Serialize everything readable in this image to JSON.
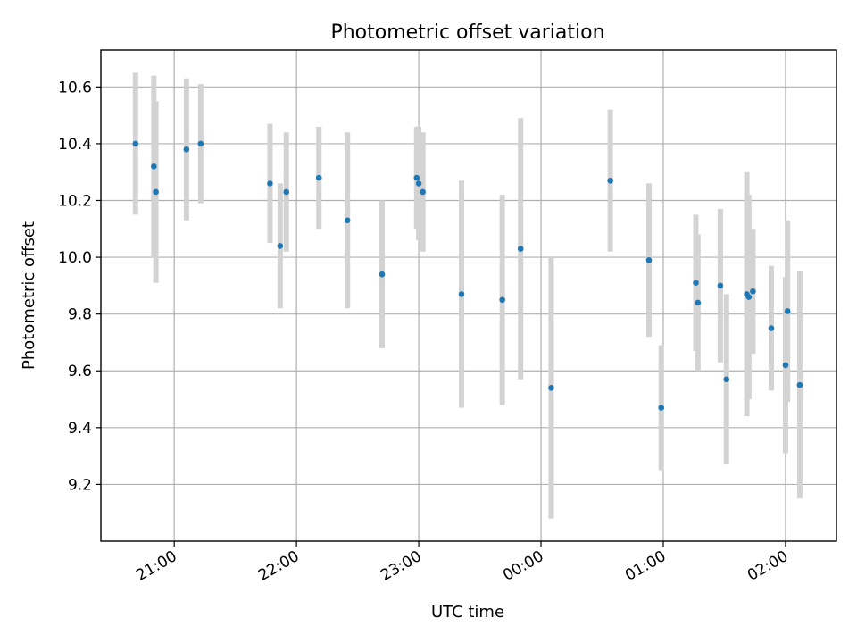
{
  "chart_data": {
    "type": "scatter",
    "title": "Photometric offset variation",
    "xlabel": "UTC time",
    "ylabel": "Photometric offset",
    "x_unit": "UTC",
    "xlim": [
      "20:24",
      "02:25"
    ],
    "ylim": [
      9.0,
      10.73
    ],
    "x_ticks": [
      "21:00",
      "22:00",
      "23:00",
      "00:00",
      "01:00",
      "02:00"
    ],
    "y_ticks": [
      9.2,
      9.4,
      9.6,
      9.8,
      10.0,
      10.2,
      10.4,
      10.6
    ],
    "grid": true,
    "legend": "none",
    "point_color": "#1f77b4",
    "errorbar_color": "#d3d3d3",
    "points": [
      {
        "x": "20:41",
        "y": 10.4,
        "yerr": 0.25
      },
      {
        "x": "20:50",
        "y": 10.32,
        "yerr": 0.32
      },
      {
        "x": "20:51",
        "y": 10.23,
        "yerr": 0.32
      },
      {
        "x": "21:06",
        "y": 10.38,
        "yerr": 0.25
      },
      {
        "x": "21:13",
        "y": 10.4,
        "yerr": 0.21
      },
      {
        "x": "21:47",
        "y": 10.26,
        "yerr": 0.21
      },
      {
        "x": "21:52",
        "y": 10.04,
        "yerr": 0.22
      },
      {
        "x": "21:55",
        "y": 10.23,
        "yerr": 0.21
      },
      {
        "x": "22:11",
        "y": 10.28,
        "yerr": 0.18
      },
      {
        "x": "22:25",
        "y": 10.13,
        "yerr": 0.31
      },
      {
        "x": "22:42",
        "y": 9.94,
        "yerr": 0.26
      },
      {
        "x": "22:59",
        "y": 10.28,
        "yerr": 0.18
      },
      {
        "x": "23:00",
        "y": 10.26,
        "yerr": 0.2
      },
      {
        "x": "23:02",
        "y": 10.23,
        "yerr": 0.21
      },
      {
        "x": "23:21",
        "y": 9.87,
        "yerr": 0.4
      },
      {
        "x": "23:41",
        "y": 9.85,
        "yerr": 0.37
      },
      {
        "x": "23:50",
        "y": 10.03,
        "yerr": 0.46
      },
      {
        "x": "00:05",
        "y": 9.54,
        "yerr": 0.46
      },
      {
        "x": "00:34",
        "y": 10.27,
        "yerr": 0.25
      },
      {
        "x": "00:53",
        "y": 9.99,
        "yerr": 0.27
      },
      {
        "x": "00:59",
        "y": 9.47,
        "yerr": 0.22
      },
      {
        "x": "01:16",
        "y": 9.91,
        "yerr": 0.24
      },
      {
        "x": "01:17",
        "y": 9.84,
        "yerr": 0.24
      },
      {
        "x": "01:28",
        "y": 9.9,
        "yerr": 0.27
      },
      {
        "x": "01:31",
        "y": 9.57,
        "yerr": 0.3
      },
      {
        "x": "01:41",
        "y": 9.87,
        "yerr": 0.43
      },
      {
        "x": "01:42",
        "y": 9.86,
        "yerr": 0.36
      },
      {
        "x": "01:44",
        "y": 9.88,
        "yerr": 0.22
      },
      {
        "x": "01:53",
        "y": 9.75,
        "yerr": 0.22
      },
      {
        "x": "02:00",
        "y": 9.62,
        "yerr": 0.31
      },
      {
        "x": "02:01",
        "y": 9.81,
        "yerr": 0.32
      },
      {
        "x": "02:07",
        "y": 9.55,
        "yerr": 0.4
      }
    ]
  }
}
